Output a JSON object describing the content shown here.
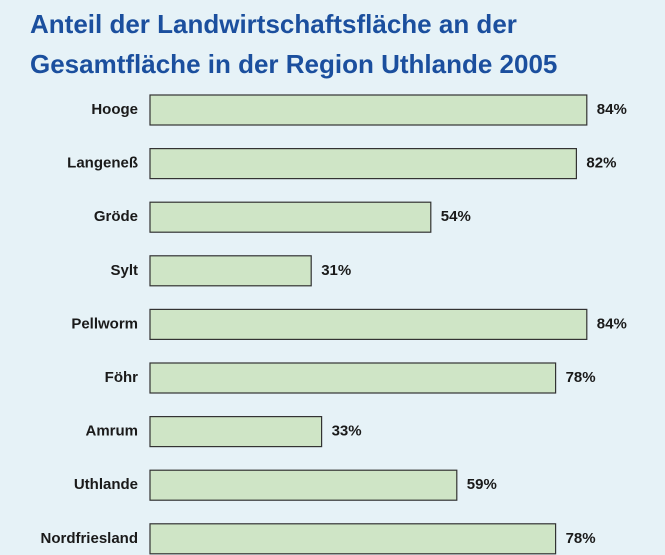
{
  "chart_data": {
    "type": "bar",
    "orientation": "horizontal",
    "title": "Anteil der Landwirtschaftsfläche an der Gesamtfläche in der Region Uthlande 2005",
    "categories": [
      "Hooge",
      "Langeneß",
      "Gröde",
      "Sylt",
      "Pellworm",
      "Föhr",
      "Amrum",
      "Uthlande",
      "Nordfriesland"
    ],
    "values": [
      84,
      82,
      54,
      31,
      84,
      78,
      33,
      59,
      78
    ],
    "value_labels": [
      "84%",
      "82%",
      "54%",
      "31%",
      "84%",
      "78%",
      "33%",
      "59%",
      "78%"
    ],
    "color": "#cfe5c6"
  }
}
